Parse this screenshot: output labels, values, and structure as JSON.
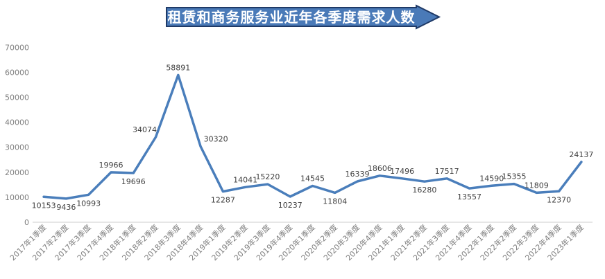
{
  "title_banner": {
    "label": "租赁和商务服务业近年各季度需求人数",
    "fill": "#4a7ab8",
    "border": "#1f3a67",
    "text_color": "#ffffff"
  },
  "chart_data": {
    "type": "line",
    "title": "租赁和商务服务业近年各季度需求人数",
    "categories": [
      "2017年1季度",
      "2017年2季度",
      "2017年3季度",
      "2017年4季度",
      "2018年1季度",
      "2018年2季度",
      "2018年3季度",
      "2018年4季度",
      "2019年1季度",
      "2019年2季度",
      "2019年3季度",
      "2019年4季度",
      "2020年1季度",
      "2020年2季度",
      "2020年3季度",
      "2020年4季度",
      "2021年1季度",
      "2021年2季度",
      "2021年3季度",
      "2021年4季度",
      "2022年1季度",
      "2022年2季度",
      "2022年3季度",
      "2022年4季度",
      "2023年1季度"
    ],
    "values": [
      10153,
      9436,
      10993,
      19966,
      19696,
      34074,
      58891,
      30320,
      12287,
      14041,
      15220,
      10237,
      14545,
      11804,
      16339,
      18606,
      17496,
      16280,
      17517,
      13557,
      14590,
      15355,
      11809,
      12370,
      24137
    ],
    "label_sides": [
      "below",
      "below",
      "below",
      "above",
      "below",
      "above",
      "above",
      "above",
      "below",
      "above",
      "above",
      "below",
      "above",
      "below",
      "above",
      "above",
      "above",
      "below",
      "above",
      "below",
      "above",
      "above",
      "above",
      "below",
      "above"
    ],
    "label_dx": {
      "5": -16,
      "7": 22
    },
    "xlabel": "",
    "ylabel": "",
    "ylim": [
      0,
      70000
    ],
    "ytick_step": 10000,
    "ytick_labels": [
      "0",
      "10000",
      "20000",
      "30000",
      "40000",
      "50000",
      "60000",
      "70000"
    ],
    "grid": false,
    "legend": "none",
    "line_color": "#4a7ebb",
    "data_label_color": "#3f3f3f",
    "axis_label_color": "#7f7f7f",
    "axis_line_color": "#d6d6d6"
  }
}
